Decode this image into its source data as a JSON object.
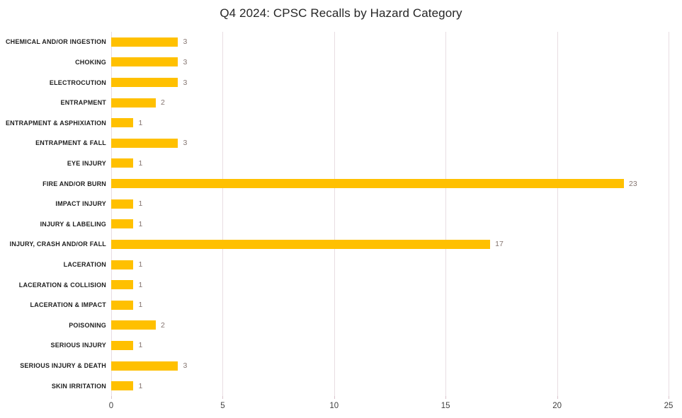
{
  "chart_data": {
    "type": "bar",
    "orientation": "horizontal",
    "title": "Q4 2024: CPSC Recalls by Hazard Category",
    "categories": [
      "CHEMICAL AND/OR INGESTION",
      "CHOKING",
      "ELECTROCUTION",
      "ENTRAPMENT",
      "ENTRAPMENT & ASPHIXIATION",
      "ENTRAPMENT & FALL",
      "EYE INJURY",
      "FIRE AND/OR BURN",
      "IMPACT INJURY",
      "INJURY & LABELING",
      "INJURY, CRASH AND/OR FALL",
      "LACERATION",
      "LACERATION & COLLISION",
      "LACERATION & IMPACT",
      "POISONING",
      "SERIOUS INJURY",
      "SERIOUS INJURY & DEATH",
      "SKIN IRRITATION"
    ],
    "values": [
      3,
      3,
      3,
      2,
      1,
      3,
      1,
      23,
      1,
      1,
      17,
      1,
      1,
      1,
      2,
      1,
      3,
      1
    ],
    "xlabel": "",
    "ylabel": "",
    "xlim": [
      0,
      25
    ],
    "xticks": [
      0,
      5,
      10,
      15,
      20,
      25
    ],
    "grid": "vertical",
    "legend": "none",
    "data_labels": true,
    "colors": {
      "bar": "#FFC000",
      "gridline": "#e8dde2",
      "value_label": "#857570",
      "tick_label": "#3f3f3f",
      "category_label": "#1f1f1f",
      "title": "#262626",
      "background": "#ffffff"
    }
  }
}
